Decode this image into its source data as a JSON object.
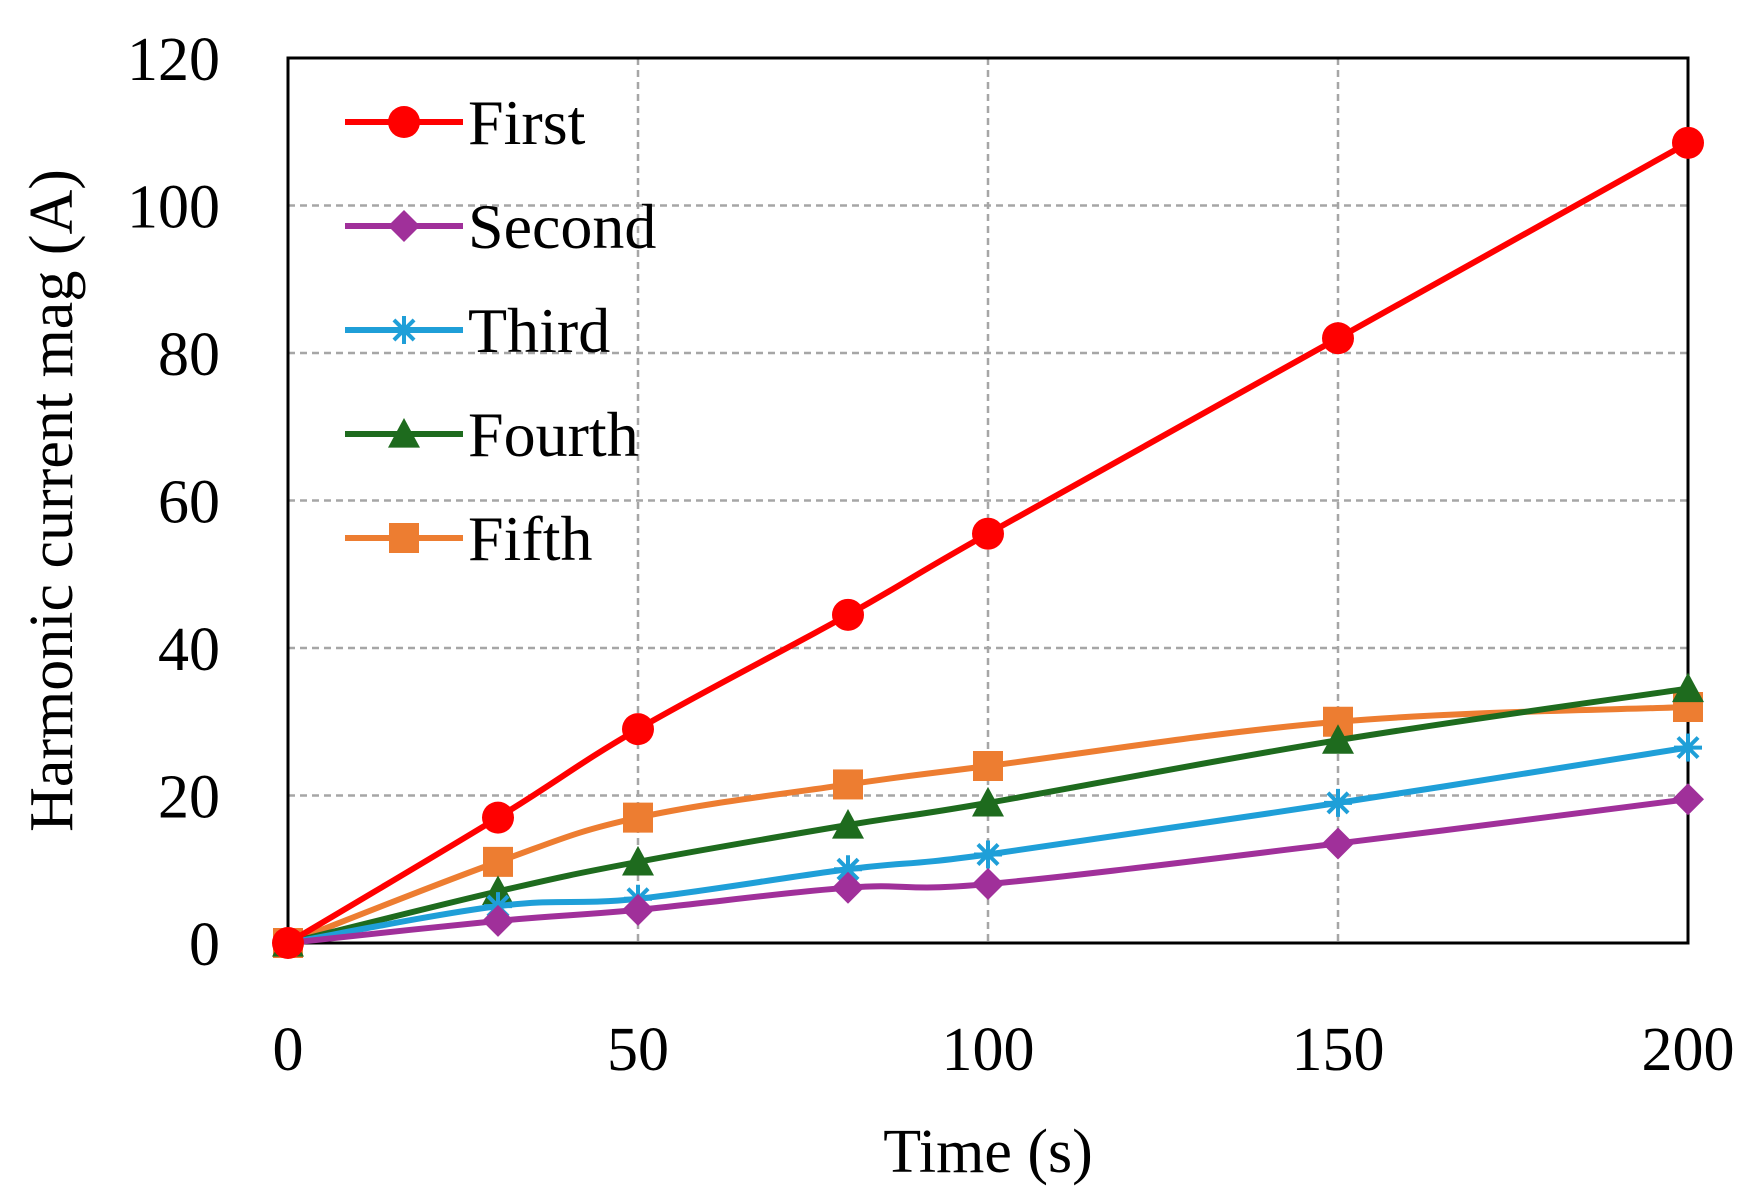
{
  "chart_data": {
    "type": "line",
    "title": "",
    "xlabel": "Time (s)",
    "ylabel": "Harmonic current mag (A)",
    "xlim": [
      0,
      200
    ],
    "ylim": [
      0,
      120
    ],
    "xticks": [
      0,
      50,
      100,
      150,
      200
    ],
    "yticks": [
      0,
      20,
      40,
      60,
      80,
      100,
      120
    ],
    "grid": true,
    "legend_position": "top-left",
    "x": [
      0,
      30,
      50,
      80,
      100,
      150,
      200
    ],
    "series": [
      {
        "name": "First",
        "color": "#ff0000",
        "marker": "circle",
        "values": [
          0,
          17,
          29,
          44.5,
          55.5,
          82,
          108.5
        ]
      },
      {
        "name": "Second",
        "color": "#a0309a",
        "marker": "diamond",
        "values": [
          0,
          3,
          4.5,
          7.5,
          8,
          13.5,
          19.5
        ]
      },
      {
        "name": "Third",
        "color": "#1f9fd8",
        "marker": "asterisk",
        "values": [
          0,
          5,
          6,
          10,
          12,
          19,
          26.5
        ]
      },
      {
        "name": "Fourth",
        "color": "#1e6b1e",
        "marker": "triangle",
        "values": [
          0,
          7,
          11,
          16,
          19,
          27.5,
          34.5
        ]
      },
      {
        "name": "Fifth",
        "color": "#ed7d31",
        "marker": "square",
        "values": [
          0,
          11,
          17,
          21.5,
          24,
          30,
          32
        ]
      }
    ]
  }
}
